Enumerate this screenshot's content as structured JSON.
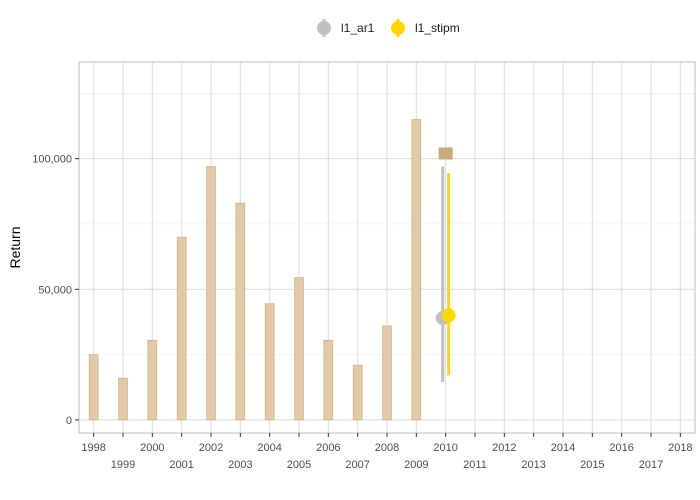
{
  "chart_data": {
    "type": "bar",
    "ylabel": "Return",
    "xlabel": "",
    "title": "",
    "x_range": [
      1997.5,
      2018.5
    ],
    "y_range": [
      -5000,
      137000
    ],
    "x_ticks": [
      1998,
      1999,
      2000,
      2001,
      2002,
      2003,
      2004,
      2005,
      2006,
      2007,
      2008,
      2009,
      2010,
      2011,
      2012,
      2013,
      2014,
      2015,
      2016,
      2017,
      2018
    ],
    "y_ticks": [
      0,
      50000,
      100000
    ],
    "y_tick_labels": [
      "0",
      "50,000",
      "100,000"
    ],
    "grid": true,
    "legend_position": "top",
    "bars": {
      "x": [
        1998,
        1999,
        2000,
        2001,
        2002,
        2003,
        2004,
        2005,
        2006,
        2007,
        2008,
        2009
      ],
      "values": [
        25000,
        16000,
        30500,
        70000,
        97000,
        83000,
        44500,
        54500,
        30500,
        21000,
        36000,
        115000
      ],
      "color": "#dfc9a6",
      "border_color": "#c8aa7d"
    },
    "actual_marker": {
      "x": 2010,
      "value": 102000,
      "color": "#c8aa7d"
    },
    "series": [
      {
        "name": "l1_ar1",
        "x": 2009.9,
        "value": 39000,
        "lower": 14500,
        "upper": 97000,
        "color": "#bebebe"
      },
      {
        "name": "l1_stipm",
        "x": 2010.1,
        "value": 40000,
        "lower": 17000,
        "upper": 94500,
        "color": "#ffd700"
      }
    ]
  }
}
